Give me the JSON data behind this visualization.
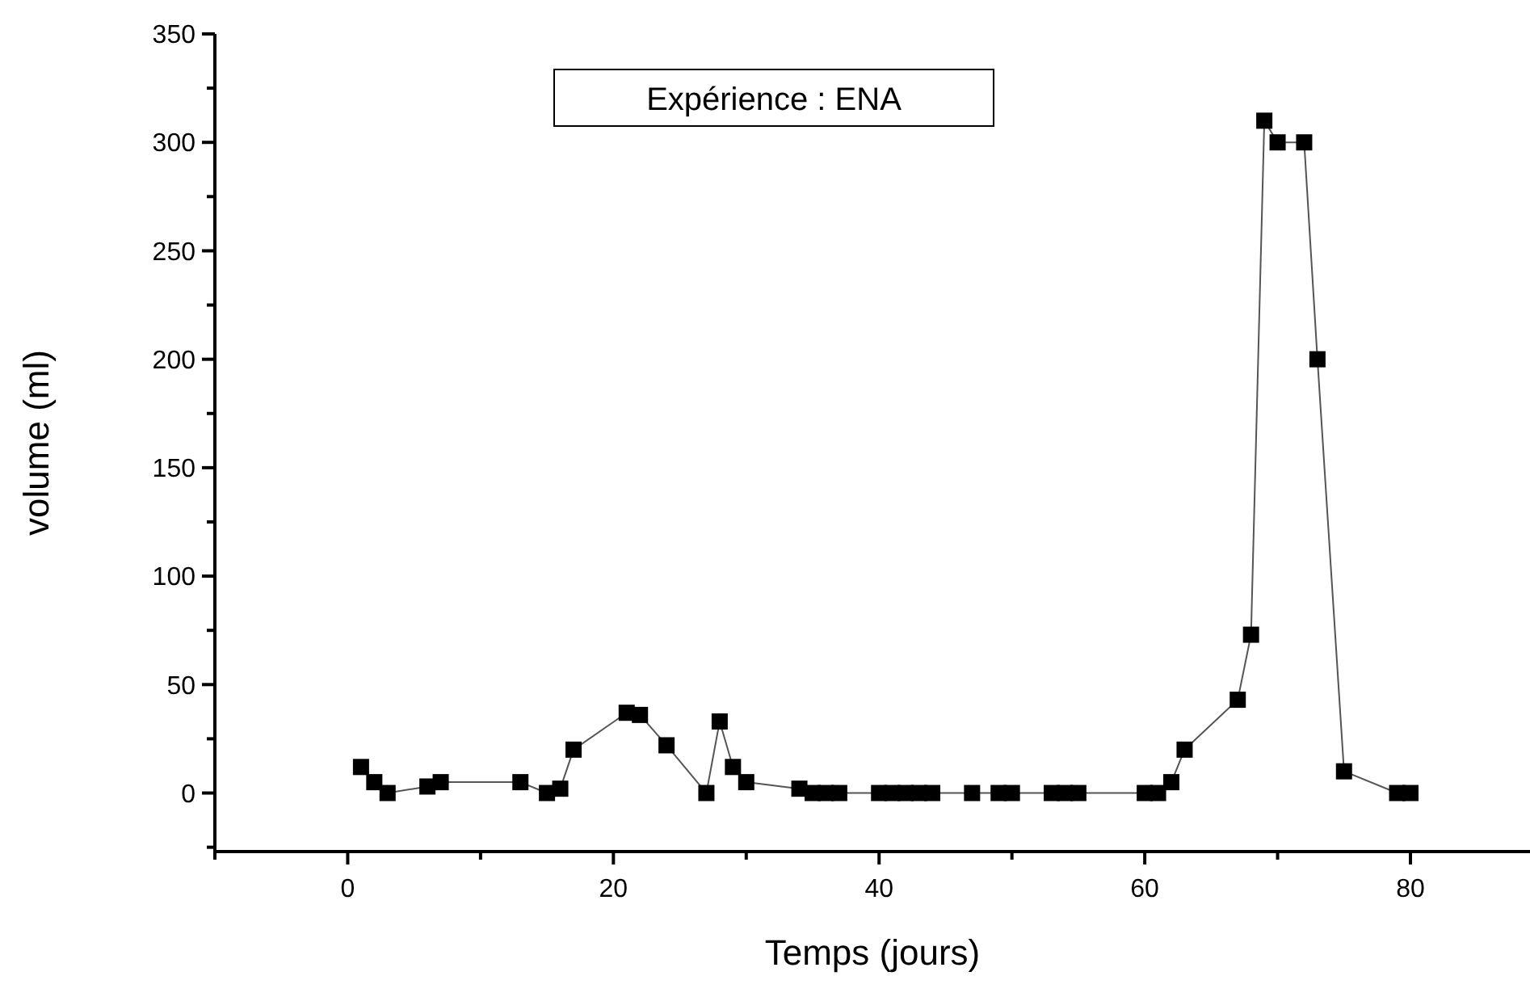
{
  "chart_data": {
    "type": "line",
    "title": "Expérience : ENA",
    "xlabel": "Temps (jours)",
    "ylabel": "volume (ml)",
    "marker": "square",
    "line_style": "solid",
    "grid": false,
    "xlim": [
      -10,
      89
    ],
    "ylim": [
      -27,
      350
    ],
    "xticks": [
      {
        "value": -10,
        "label": null
      },
      0,
      {
        "value": 10,
        "label": null
      },
      20,
      {
        "value": 30,
        "label": null
      },
      40,
      {
        "value": 50,
        "label": null
      },
      60,
      {
        "value": 70,
        "label": null
      },
      80
    ],
    "yticks": [
      {
        "value": -25,
        "label": null
      },
      0,
      {
        "value": 25,
        "label": null
      },
      50,
      {
        "value": 75,
        "label": null
      },
      100,
      {
        "value": 125,
        "label": null
      },
      150,
      {
        "value": 175,
        "label": null
      },
      200,
      {
        "value": 225,
        "label": null
      },
      250,
      {
        "value": 275,
        "label": null
      },
      300,
      {
        "value": 325,
        "label": null
      },
      350
    ],
    "series": [
      {
        "color": "#000000",
        "x": [
          1,
          2,
          3,
          6,
          7,
          13,
          15,
          16,
          17,
          21,
          22,
          24,
          27,
          28,
          29,
          30,
          34,
          35,
          36,
          37,
          40,
          41,
          42,
          43,
          44,
          47,
          49,
          50,
          53,
          54,
          55,
          60,
          61,
          62,
          63,
          67,
          68,
          69,
          70,
          72,
          73,
          75,
          79,
          80
        ],
        "values": [
          12,
          5,
          0,
          3,
          5,
          5,
          0,
          2,
          20,
          37,
          36,
          22,
          0,
          33,
          12,
          5,
          2,
          0,
          0,
          0,
          0,
          0,
          0,
          0,
          0,
          0,
          0,
          0,
          0,
          0,
          0,
          0,
          0,
          5,
          20,
          43,
          73,
          310,
          300,
          300,
          200,
          10,
          0,
          0
        ]
      }
    ]
  }
}
